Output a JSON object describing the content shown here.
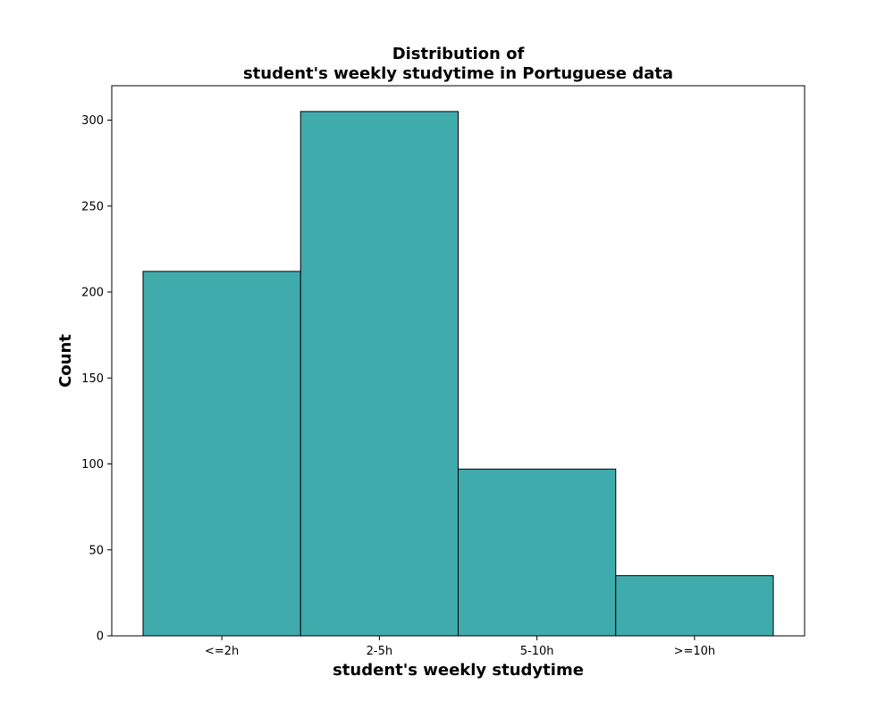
{
  "chart_data": {
    "type": "bar",
    "title": "Distribution of\nstudent's weekly studytime in Portuguese data",
    "title_lines": [
      "Distribution of",
      "student's weekly studytime in Portuguese data"
    ],
    "xlabel": "student's weekly studytime",
    "ylabel": "Count",
    "categories": [
      "<=2h",
      "2-5h",
      "5-10h",
      ">=10h"
    ],
    "values": [
      212,
      305,
      97,
      35
    ],
    "ylim": [
      0,
      320
    ],
    "yticks": [
      0,
      50,
      100,
      150,
      200,
      250,
      300
    ],
    "grid": false,
    "bar_color": "#40abad",
    "edge_color": "#000000"
  }
}
